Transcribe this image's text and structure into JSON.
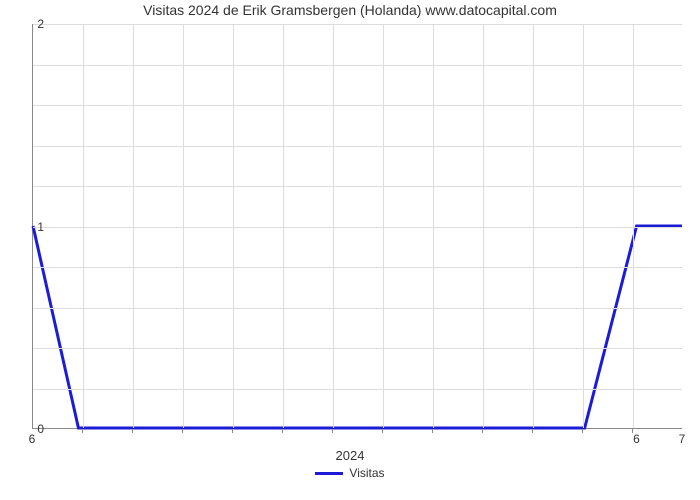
{
  "chart": {
    "type": "line",
    "title": "Visitas 2024 de Erik Gramsbergen (Holanda) www.datocapital.com",
    "title_fontsize": 14,
    "x_axis_label": "2024",
    "legend_label": "Visitas",
    "line_color": "#1c1cd6",
    "line_width": 3,
    "background_color": "#ffffff",
    "grid_color": "#dddddd",
    "axis_color": "#888888",
    "text_color": "#333333",
    "ylim": [
      0,
      2
    ],
    "y_ticks": [
      0,
      1,
      2
    ],
    "y_minor_count": 4,
    "x_tick_labels_left": "6",
    "x_tick_labels_right_1": "6",
    "x_tick_labels_right_2": "7",
    "x_minor_count": 12,
    "data_points": [
      {
        "x": 0.0,
        "y": 1.0
      },
      {
        "x": 0.07,
        "y": 0.0
      },
      {
        "x": 0.85,
        "y": 0.0
      },
      {
        "x": 0.93,
        "y": 1.0
      },
      {
        "x": 1.0,
        "y": 1.0
      }
    ]
  }
}
